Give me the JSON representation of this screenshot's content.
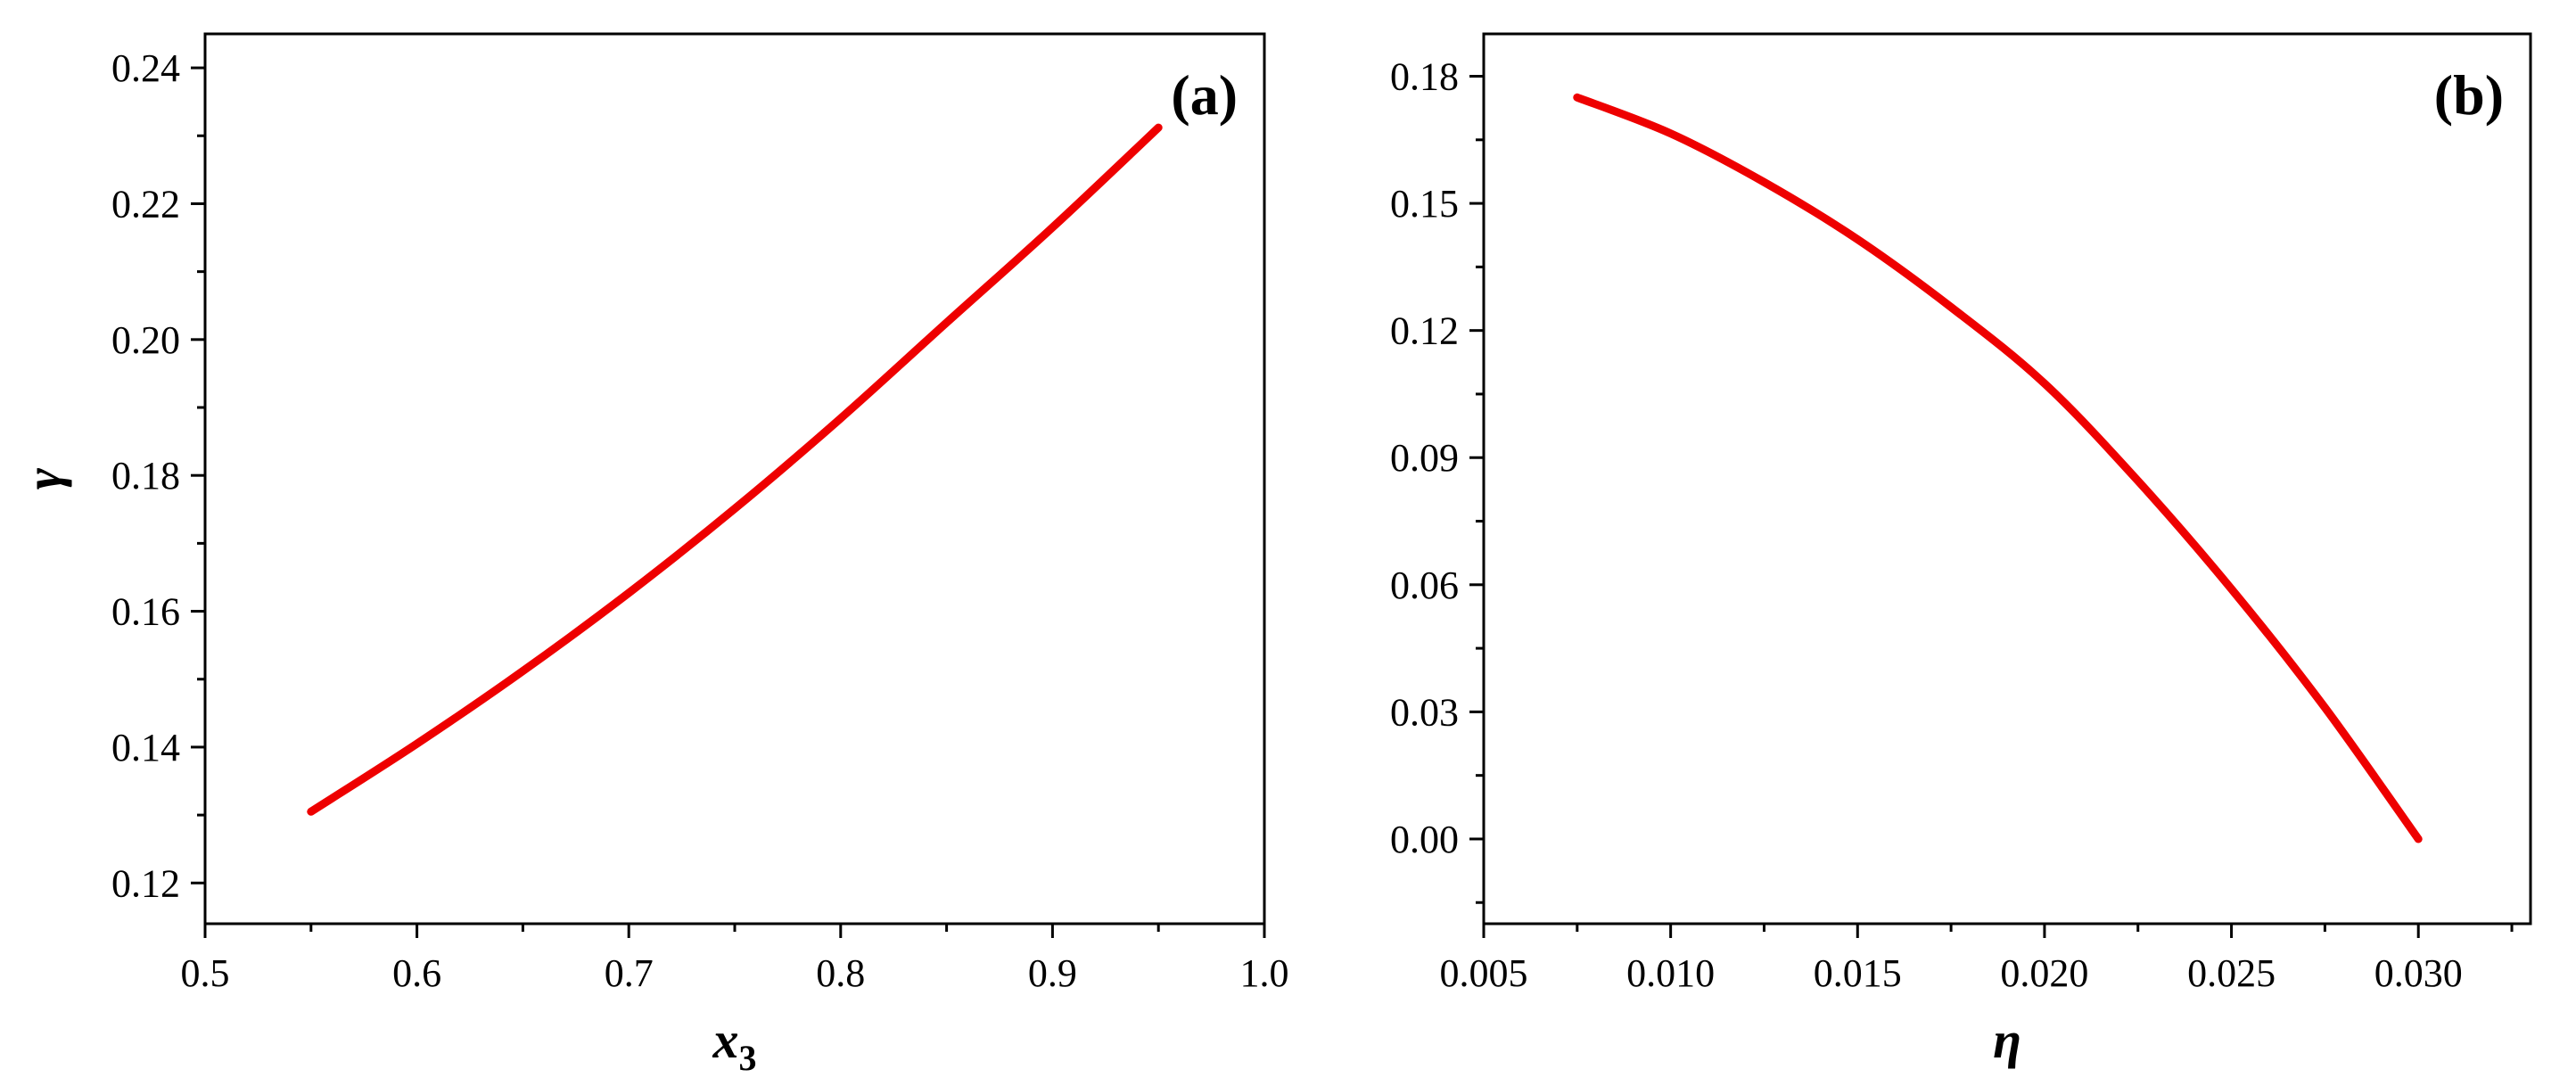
{
  "chart_data": [
    {
      "type": "line",
      "panel_label": "(a)",
      "xlabel": "x",
      "xlabel_sub": "3",
      "ylabel": "γ",
      "xlim": [
        0.5,
        1.0
      ],
      "ylim": [
        0.114,
        0.245
      ],
      "xticks": [
        0.5,
        0.6,
        0.7,
        0.8,
        0.9,
        1.0
      ],
      "xtick_labels": [
        "0.5",
        "0.6",
        "0.7",
        "0.8",
        "0.9",
        "1.0"
      ],
      "yticks": [
        0.12,
        0.14,
        0.16,
        0.18,
        0.2,
        0.22,
        0.24
      ],
      "ytick_labels": [
        "0.12",
        "0.14",
        "0.16",
        "0.18",
        "0.20",
        "0.22",
        "0.24"
      ],
      "grid": false,
      "color": "#ee0000",
      "series": [
        {
          "x": [
            0.55,
            0.6,
            0.65,
            0.7,
            0.75,
            0.8,
            0.85,
            0.9,
            0.95
          ],
          "y": [
            0.1305,
            0.1405,
            0.1512,
            0.1627,
            0.1751,
            0.1884,
            0.2025,
            0.2165,
            0.2312
          ]
        }
      ]
    },
    {
      "type": "line",
      "panel_label": "(b)",
      "xlabel": "η",
      "ylabel": "",
      "xlim": [
        0.005,
        0.033
      ],
      "ylim": [
        -0.02,
        0.19
      ],
      "xticks": [
        0.005,
        0.01,
        0.015,
        0.02,
        0.025,
        0.03
      ],
      "xtick_labels": [
        "0.005",
        "0.010",
        "0.015",
        "0.020",
        "0.025",
        "0.030"
      ],
      "yticks": [
        0.0,
        0.03,
        0.06,
        0.09,
        0.12,
        0.15,
        0.18
      ],
      "ytick_labels": [
        "0.00",
        "0.03",
        "0.06",
        "0.09",
        "0.12",
        "0.15",
        "0.18"
      ],
      "grid": false,
      "color": "#ee0000",
      "series": [
        {
          "x": [
            0.0075,
            0.01,
            0.0125,
            0.015,
            0.0175,
            0.02,
            0.0225,
            0.025,
            0.0275,
            0.03
          ],
          "y": [
            0.175,
            0.1665,
            0.155,
            0.1415,
            0.1255,
            0.1075,
            0.0845,
            0.059,
            0.031,
            0.0
          ]
        }
      ]
    }
  ]
}
